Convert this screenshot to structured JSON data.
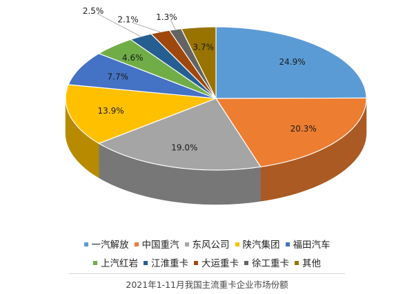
{
  "chart_data": {
    "type": "pie",
    "title": "",
    "series": [
      {
        "name": "一汽解放",
        "value": 24.9,
        "label": "24.9%",
        "color": "#5b9bd5"
      },
      {
        "name": "中国重汽",
        "value": 20.3,
        "label": "20.3%",
        "color": "#ed7d31"
      },
      {
        "name": "东风公司",
        "value": 19.0,
        "label": "19.0%",
        "color": "#a5a5a5"
      },
      {
        "name": "陕汽集团",
        "value": 13.9,
        "label": "13.9%",
        "color": "#ffc000"
      },
      {
        "name": "福田汽车",
        "value": 7.7,
        "label": "7.7%",
        "color": "#4472c4"
      },
      {
        "name": "上汽红岩",
        "value": 4.6,
        "label": "4.6%",
        "color": "#70ad47"
      },
      {
        "name": "江淮重卡",
        "value": 2.5,
        "label": "2.5%",
        "color": "#255e91"
      },
      {
        "name": "大运重卡",
        "value": 2.1,
        "label": "2.1%",
        "color": "#9e480e"
      },
      {
        "name": "徐工重卡",
        "value": 1.3,
        "label": "1.3%",
        "color": "#636363"
      },
      {
        "name": "其他",
        "value": 3.7,
        "label": "3.7%",
        "color": "#997300"
      }
    ],
    "legend_placement": "bottom",
    "style": "3d"
  },
  "caption": "2021年1-11月我国主流重卡企业市场份额"
}
